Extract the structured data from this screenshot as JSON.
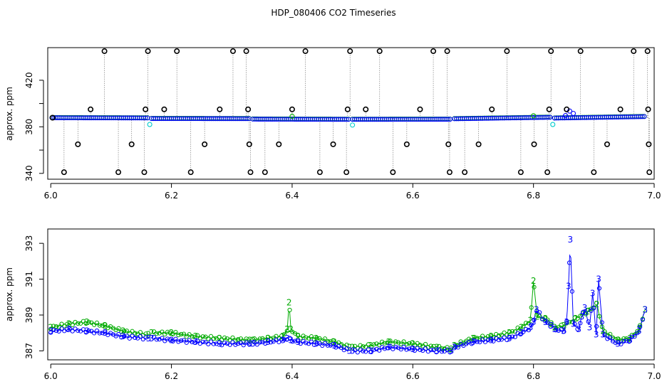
{
  "title": "HDP_080406  CO2 Timeseries",
  "colors": {
    "raw_points": "#000000",
    "primary": "#0000ff",
    "secondary": "#00aa00",
    "flagged": "#00cccc",
    "connector": "#808080"
  },
  "chart_data": [
    {
      "id": "top",
      "type": "scatter",
      "ylabel": "approx. ppm",
      "xlim": [
        5.995,
        7.0
      ],
      "ylim": [
        335,
        448
      ],
      "xticks": [
        6.0,
        6.2,
        6.4,
        6.6,
        6.8,
        7.0
      ],
      "xtick_labels": [
        "6.0",
        "6.2",
        "6.4",
        "6.6",
        "6.8",
        "7.0"
      ],
      "yticks": [
        340,
        360,
        380,
        400,
        420
      ],
      "ytick_labels": [
        "340",
        "",
        "380",
        "",
        "420"
      ],
      "base": {
        "segments": [
          {
            "x0": 6.002,
            "x1": 6.162,
            "y0": 387.8,
            "y1": 387.6
          },
          {
            "x0": 6.167,
            "x1": 6.33,
            "y0": 387.1,
            "y1": 387.0
          },
          {
            "x0": 6.335,
            "x1": 6.495,
            "y0": 386.6,
            "y1": 386.4
          },
          {
            "x0": 6.5,
            "x1": 6.664,
            "y0": 386.4,
            "y1": 386.5
          },
          {
            "x0": 6.669,
            "x1": 6.83,
            "y0": 386.9,
            "y1": 388.2
          },
          {
            "x0": 6.835,
            "x1": 6.985,
            "y0": 387.5,
            "y1": 388.8
          }
        ],
        "step": 0.0033
      },
      "extra_points": [
        {
          "x": 6.866,
          "y": 391.5,
          "series": "primary"
        },
        {
          "x": 6.86,
          "y": 393.5,
          "series": "primary"
        },
        {
          "x": 6.853,
          "y": 389.6,
          "series": "primary"
        },
        {
          "x": 6.164,
          "y": 382.0,
          "series": "flagged"
        },
        {
          "x": 6.5,
          "y": 381.5,
          "series": "flagged"
        },
        {
          "x": 6.832,
          "y": 382.0,
          "series": "flagged"
        },
        {
          "x": 6.4,
          "y": 389.0,
          "series": "secondary"
        },
        {
          "x": 6.8,
          "y": 389.5,
          "series": "secondary"
        }
      ],
      "raw_points": [
        [
          6.003,
          387.8
        ],
        [
          6.022,
          341
        ],
        [
          6.045,
          365
        ],
        [
          6.066,
          395
        ],
        [
          6.089,
          445
        ],
        [
          6.112,
          341
        ],
        [
          6.134,
          365
        ],
        [
          6.155,
          341
        ],
        [
          6.157,
          395
        ],
        [
          6.161,
          445
        ],
        [
          6.188,
          395
        ],
        [
          6.209,
          445
        ],
        [
          6.232,
          341
        ],
        [
          6.255,
          365
        ],
        [
          6.28,
          395
        ],
        [
          6.302,
          445
        ],
        [
          6.324,
          445
        ],
        [
          6.327,
          395
        ],
        [
          6.329,
          365
        ],
        [
          6.331,
          341
        ],
        [
          6.355,
          341
        ],
        [
          6.378,
          365
        ],
        [
          6.4,
          395
        ],
        [
          6.422,
          445
        ],
        [
          6.446,
          341
        ],
        [
          6.468,
          365
        ],
        [
          6.49,
          341
        ],
        [
          6.492,
          395
        ],
        [
          6.496,
          445
        ],
        [
          6.522,
          395
        ],
        [
          6.545,
          445
        ],
        [
          6.567,
          341
        ],
        [
          6.59,
          365
        ],
        [
          6.612,
          395
        ],
        [
          6.634,
          445
        ],
        [
          6.657,
          445
        ],
        [
          6.659,
          365
        ],
        [
          6.661,
          341
        ],
        [
          6.686,
          341
        ],
        [
          6.709,
          365
        ],
        [
          6.731,
          395
        ],
        [
          6.756,
          445
        ],
        [
          6.779,
          341
        ],
        [
          6.801,
          365
        ],
        [
          6.823,
          341
        ],
        [
          6.826,
          395
        ],
        [
          6.829,
          445
        ],
        [
          6.855,
          395
        ],
        [
          6.878,
          445
        ],
        [
          6.9,
          341
        ],
        [
          6.922,
          365
        ],
        [
          6.944,
          395
        ],
        [
          6.966,
          445
        ],
        [
          6.989,
          445
        ],
        [
          6.99,
          395
        ],
        [
          6.991,
          365
        ],
        [
          6.992,
          341
        ]
      ]
    },
    {
      "id": "bottom",
      "type": "line",
      "ylabel": "approx. ppm",
      "xlim": [
        5.995,
        7.0
      ],
      "ylim": [
        386.5,
        393.8
      ],
      "xticks": [
        6.0,
        6.2,
        6.4,
        6.6,
        6.8,
        7.0
      ],
      "xtick_labels": [
        "6.0",
        "6.2",
        "6.4",
        "6.6",
        "6.8",
        "7.0"
      ],
      "yticks": [
        387,
        389,
        391,
        393
      ],
      "ytick_labels": [
        "387",
        "389",
        "391",
        "393"
      ],
      "series": [
        {
          "key": "secondary",
          "marker": "2",
          "x": [
            6.0,
            6.03,
            6.06,
            6.09,
            6.12,
            6.162,
            6.167,
            6.2,
            6.24,
            6.28,
            6.33,
            6.335,
            6.36,
            6.385,
            6.392,
            6.395,
            6.398,
            6.41,
            6.44,
            6.47,
            6.495,
            6.5,
            6.53,
            6.56,
            6.6,
            6.64,
            6.664,
            6.669,
            6.7,
            6.73,
            6.76,
            6.78,
            6.795,
            6.8,
            6.806,
            6.82,
            6.83,
            6.835,
            6.85,
            6.87,
            6.89,
            6.905,
            6.915,
            6.94,
            6.96,
            6.975,
            6.985
          ],
          "y": [
            388.3,
            388.5,
            388.6,
            388.4,
            388.1,
            387.9,
            388.0,
            388.0,
            387.8,
            387.7,
            387.6,
            387.6,
            387.7,
            387.8,
            388.2,
            389.7,
            388.2,
            387.8,
            387.7,
            387.5,
            387.2,
            387.2,
            387.3,
            387.5,
            387.4,
            387.2,
            387.1,
            387.3,
            387.7,
            387.8,
            388.0,
            388.3,
            388.7,
            390.9,
            388.9,
            388.8,
            388.5,
            388.3,
            388.4,
            388.8,
            389.2,
            389.6,
            388.1,
            387.6,
            387.7,
            388.2,
            389.3
          ]
        },
        {
          "key": "primary",
          "marker": "3",
          "x": [
            6.0,
            6.03,
            6.06,
            6.09,
            6.12,
            6.162,
            6.167,
            6.2,
            6.24,
            6.28,
            6.33,
            6.335,
            6.36,
            6.385,
            6.392,
            6.398,
            6.41,
            6.44,
            6.47,
            6.495,
            6.5,
            6.53,
            6.56,
            6.6,
            6.64,
            6.664,
            6.669,
            6.7,
            6.73,
            6.76,
            6.78,
            6.795,
            6.8,
            6.805,
            6.82,
            6.83,
            6.835,
            6.85,
            6.855,
            6.858,
            6.861,
            6.866,
            6.875,
            6.88,
            6.885,
            6.893,
            6.898,
            6.904,
            6.908,
            6.915,
            6.94,
            6.96,
            6.975,
            6.985
          ],
          "y": [
            388.1,
            388.2,
            388.1,
            388.0,
            387.8,
            387.7,
            387.7,
            387.6,
            387.5,
            387.4,
            387.4,
            387.4,
            387.5,
            387.6,
            387.7,
            387.6,
            387.5,
            387.4,
            387.3,
            387.0,
            387.0,
            387.0,
            387.2,
            387.1,
            387.0,
            387.0,
            387.2,
            387.5,
            387.6,
            387.7,
            388.0,
            388.3,
            388.6,
            389.3,
            388.6,
            388.4,
            388.2,
            388.1,
            388.6,
            390.6,
            393.2,
            388.5,
            388.2,
            388.9,
            389.4,
            388.3,
            390.2,
            387.9,
            391.0,
            387.9,
            387.4,
            387.6,
            388.1,
            389.3
          ]
        }
      ]
    }
  ]
}
